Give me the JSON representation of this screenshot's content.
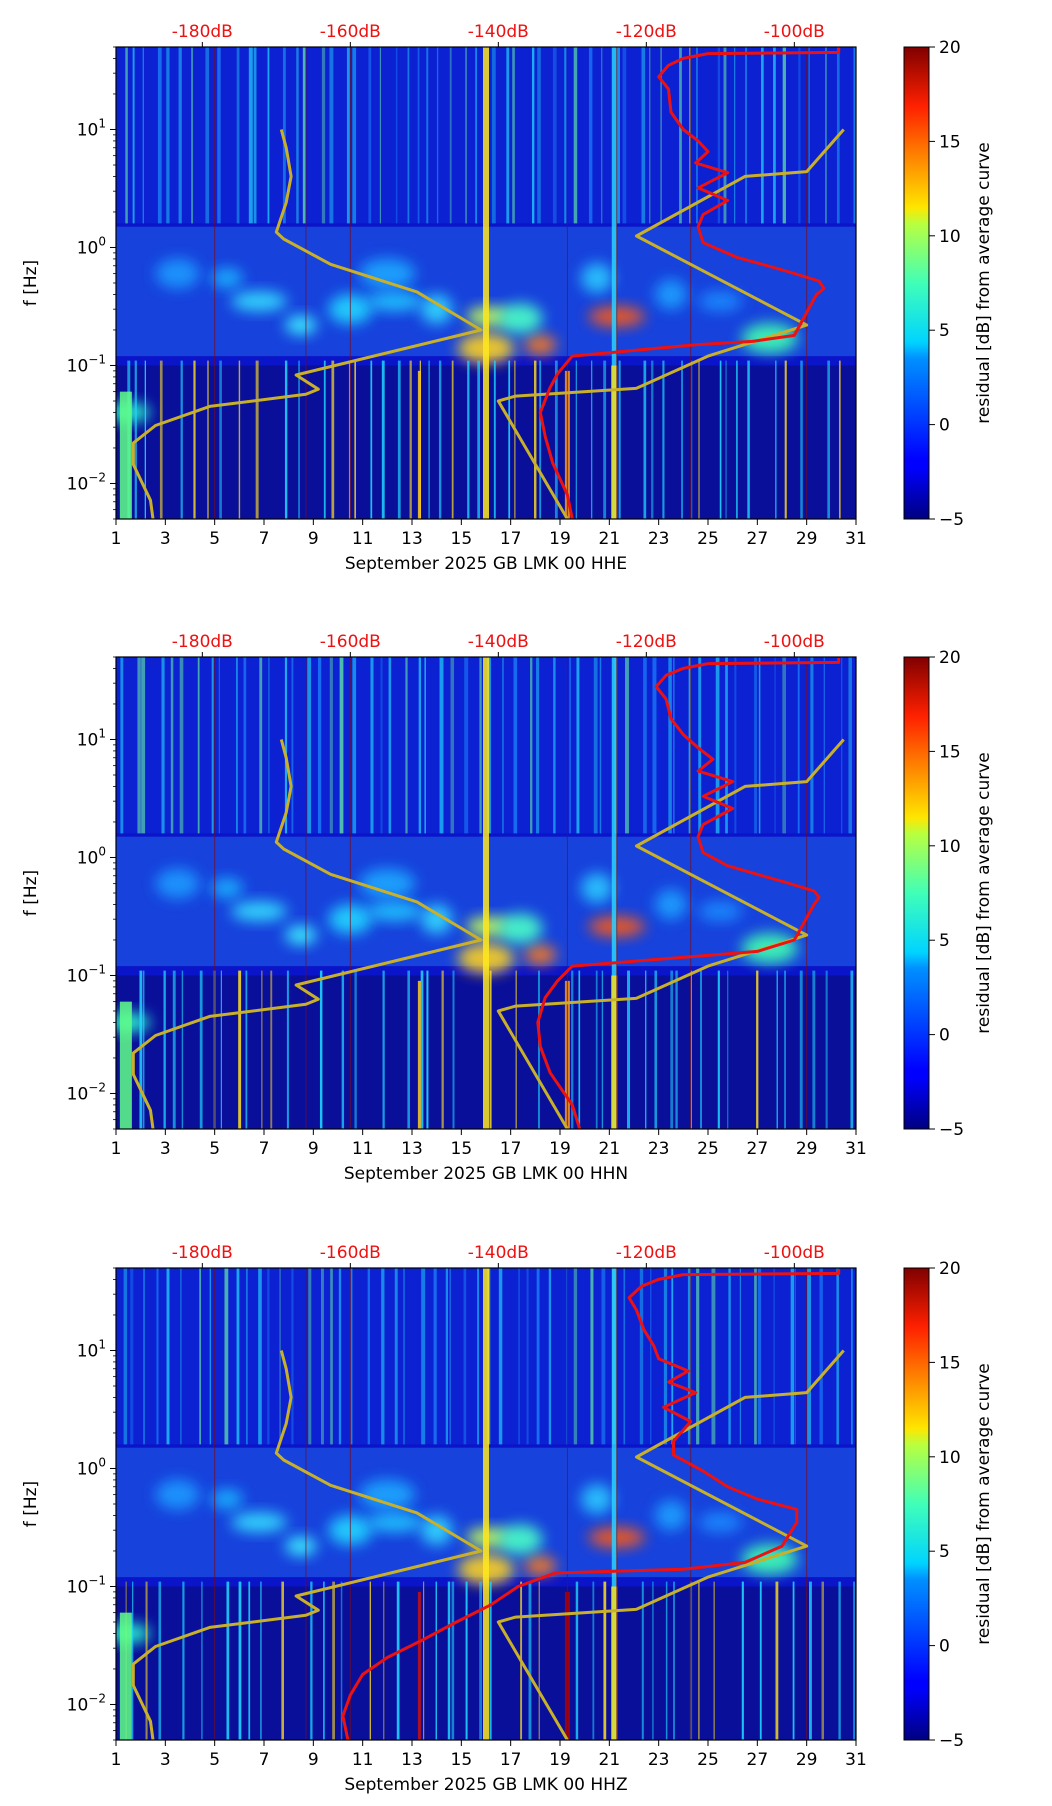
{
  "figure": {
    "colorbar_label": "residual [dB] from average curve",
    "colorbar_ticks": [
      "−5",
      "0",
      "5",
      "10",
      "15",
      "20"
    ],
    "colorbar_range": [
      -5,
      20
    ],
    "colormap": "jet",
    "colors": {
      "noise_model_curve": "#c8b02a",
      "psd_curve": "#ee1111",
      "db_tick_labels": "#ee1111"
    }
  },
  "chart_data": [
    {
      "type": "heatmap",
      "title": "",
      "xlabel": "September 2025 GB LMK 00 HHE",
      "ylabel": "f [Hz]",
      "x_ticks": [
        "1",
        "3",
        "5",
        "7",
        "9",
        "11",
        "13",
        "15",
        "17",
        "19",
        "21",
        "23",
        "25",
        "27",
        "29",
        "31"
      ],
      "xlim": [
        1,
        31
      ],
      "y_ticks": [
        "10^-2",
        "10^-1",
        "10^0",
        "10^1"
      ],
      "ylim": [
        0.005,
        50
      ],
      "y_scale": "log",
      "top_ticks": [
        "-180dB",
        "-160dB",
        "-140dB",
        "-120dB",
        "-100dB"
      ],
      "top_tick_days": [
        4.5,
        10.5,
        16.5,
        22.5,
        28.5
      ],
      "noise_model_curve": [
        [
          2.5,
          0.005
        ],
        [
          2.4,
          0.0072
        ],
        [
          1.7,
          0.0145
        ],
        [
          1.7,
          0.022
        ],
        [
          2.6,
          0.031
        ],
        [
          4.8,
          0.045
        ],
        [
          8.7,
          0.057
        ],
        [
          9.2,
          0.063
        ],
        [
          8.3,
          0.083
        ],
        [
          15.8,
          0.2
        ],
        [
          13.2,
          0.42
        ],
        [
          9.7,
          0.72
        ],
        [
          7.8,
          1.18
        ],
        [
          7.5,
          1.35
        ],
        [
          7.9,
          2.4
        ],
        [
          8.1,
          4.0
        ],
        [
          7.9,
          7.0
        ],
        [
          7.7,
          10.0
        ]
      ],
      "noise_model_curve_2": [
        [
          19.3,
          0.005
        ],
        [
          16.5,
          0.05
        ],
        [
          17.2,
          0.055
        ],
        [
          22.1,
          0.064
        ],
        [
          25,
          0.12
        ],
        [
          29,
          0.22
        ],
        [
          22.1,
          1.25
        ],
        [
          26.5,
          4.0
        ],
        [
          29,
          4.4
        ],
        [
          30.5,
          10.0
        ]
      ],
      "psd_curve": [
        [
          19.5,
          0.005
        ],
        [
          19.3,
          0.008
        ],
        [
          18.7,
          0.015
        ],
        [
          18.4,
          0.025
        ],
        [
          18.2,
          0.04
        ],
        [
          18.6,
          0.065
        ],
        [
          18.9,
          0.085
        ],
        [
          19.5,
          0.12
        ],
        [
          24.5,
          0.15
        ],
        [
          26.8,
          0.16
        ],
        [
          28.5,
          0.18
        ],
        [
          29.4,
          0.4
        ],
        [
          29.7,
          0.45
        ],
        [
          29.5,
          0.52
        ],
        [
          28.3,
          0.62
        ],
        [
          27.2,
          0.72
        ],
        [
          26.2,
          0.82
        ],
        [
          24.8,
          1.1
        ],
        [
          24.6,
          1.5
        ],
        [
          24.8,
          1.9
        ],
        [
          25.8,
          2.5
        ],
        [
          24.6,
          3.2
        ],
        [
          25.8,
          4.3
        ],
        [
          24.5,
          5.2
        ],
        [
          25,
          6.5
        ],
        [
          24.6,
          8
        ],
        [
          24,
          10
        ],
        [
          23.5,
          14
        ],
        [
          23.4,
          22
        ],
        [
          23,
          28
        ],
        [
          23.4,
          35
        ],
        [
          24,
          40
        ],
        [
          25,
          44
        ],
        [
          30.3,
          45
        ],
        [
          30.3,
          49
        ]
      ]
    },
    {
      "type": "heatmap",
      "title": "",
      "xlabel": "September 2025 GB LMK 00 HHN",
      "ylabel": "f [Hz]",
      "x_ticks": [
        "1",
        "3",
        "5",
        "7",
        "9",
        "11",
        "13",
        "15",
        "17",
        "19",
        "21",
        "23",
        "25",
        "27",
        "29",
        "31"
      ],
      "xlim": [
        1,
        31
      ],
      "y_ticks": [
        "10^-2",
        "10^-1",
        "10^0",
        "10^1"
      ],
      "ylim": [
        0.005,
        50
      ],
      "y_scale": "log",
      "top_ticks": [
        "-180dB",
        "-160dB",
        "-140dB",
        "-120dB",
        "-100dB"
      ],
      "top_tick_days": [
        4.5,
        10.5,
        16.5,
        22.5,
        28.5
      ],
      "noise_model_curve": [
        [
          2.5,
          0.005
        ],
        [
          2.4,
          0.0072
        ],
        [
          1.7,
          0.0145
        ],
        [
          1.7,
          0.022
        ],
        [
          2.6,
          0.031
        ],
        [
          4.8,
          0.045
        ],
        [
          8.7,
          0.057
        ],
        [
          9.2,
          0.063
        ],
        [
          8.3,
          0.083
        ],
        [
          15.8,
          0.2
        ],
        [
          13.2,
          0.42
        ],
        [
          9.7,
          0.72
        ],
        [
          7.8,
          1.18
        ],
        [
          7.5,
          1.35
        ],
        [
          7.9,
          2.4
        ],
        [
          8.1,
          4.0
        ],
        [
          7.9,
          7.0
        ],
        [
          7.7,
          10.0
        ]
      ],
      "noise_model_curve_2": [
        [
          19.3,
          0.005
        ],
        [
          16.5,
          0.05
        ],
        [
          17.2,
          0.055
        ],
        [
          22.1,
          0.064
        ],
        [
          25,
          0.12
        ],
        [
          29,
          0.22
        ],
        [
          22.1,
          1.25
        ],
        [
          26.5,
          4.0
        ],
        [
          29,
          4.4
        ],
        [
          30.5,
          10.0
        ]
      ],
      "psd_curve": [
        [
          19.8,
          0.005
        ],
        [
          19.5,
          0.008
        ],
        [
          18.6,
          0.015
        ],
        [
          18.2,
          0.025
        ],
        [
          18.1,
          0.04
        ],
        [
          18.4,
          0.065
        ],
        [
          18.9,
          0.09
        ],
        [
          19.5,
          0.12
        ],
        [
          24.5,
          0.145
        ],
        [
          27,
          0.16
        ],
        [
          28.5,
          0.2
        ],
        [
          29.3,
          0.4
        ],
        [
          29.5,
          0.46
        ],
        [
          29.3,
          0.52
        ],
        [
          28.1,
          0.62
        ],
        [
          27,
          0.72
        ],
        [
          25.8,
          0.85
        ],
        [
          24.8,
          1.1
        ],
        [
          24.6,
          1.5
        ],
        [
          24.8,
          1.9
        ],
        [
          26,
          2.6
        ],
        [
          24.8,
          3.3
        ],
        [
          26,
          4.4
        ],
        [
          24.6,
          5.4
        ],
        [
          25.2,
          6.8
        ],
        [
          24.6,
          8.5
        ],
        [
          24,
          11
        ],
        [
          23.5,
          15
        ],
        [
          23.3,
          22
        ],
        [
          22.9,
          28
        ],
        [
          23.3,
          35
        ],
        [
          24,
          40
        ],
        [
          25,
          44
        ],
        [
          30.3,
          45
        ],
        [
          30.3,
          49
        ]
      ]
    },
    {
      "type": "heatmap",
      "title": "",
      "xlabel": "September 2025 GB LMK 00 HHZ",
      "ylabel": "f [Hz]",
      "x_ticks": [
        "1",
        "3",
        "5",
        "7",
        "9",
        "11",
        "13",
        "15",
        "17",
        "19",
        "21",
        "23",
        "25",
        "27",
        "29",
        "31"
      ],
      "xlim": [
        1,
        31
      ],
      "y_ticks": [
        "10^-2",
        "10^-1",
        "10^0",
        "10^1"
      ],
      "ylim": [
        0.005,
        50
      ],
      "y_scale": "log",
      "top_ticks": [
        "-180dB",
        "-160dB",
        "-140dB",
        "-120dB",
        "-100dB"
      ],
      "top_tick_days": [
        4.5,
        10.5,
        16.5,
        22.5,
        28.5
      ],
      "noise_model_curve": [
        [
          2.5,
          0.005
        ],
        [
          2.4,
          0.0072
        ],
        [
          1.7,
          0.0145
        ],
        [
          1.7,
          0.022
        ],
        [
          2.6,
          0.031
        ],
        [
          4.8,
          0.045
        ],
        [
          8.7,
          0.057
        ],
        [
          9.2,
          0.063
        ],
        [
          8.3,
          0.083
        ],
        [
          15.8,
          0.2
        ],
        [
          13.2,
          0.42
        ],
        [
          9.7,
          0.72
        ],
        [
          7.8,
          1.18
        ],
        [
          7.5,
          1.35
        ],
        [
          7.9,
          2.4
        ],
        [
          8.1,
          4.0
        ],
        [
          7.9,
          7.0
        ],
        [
          7.7,
          10.0
        ]
      ],
      "noise_model_curve_2": [
        [
          19.3,
          0.005
        ],
        [
          16.5,
          0.05
        ],
        [
          17.2,
          0.055
        ],
        [
          22.1,
          0.064
        ],
        [
          25,
          0.12
        ],
        [
          29,
          0.22
        ],
        [
          22.1,
          1.25
        ],
        [
          26.5,
          4.0
        ],
        [
          29,
          4.4
        ],
        [
          30.5,
          10.0
        ]
      ],
      "psd_curve": [
        [
          10.4,
          0.005
        ],
        [
          10.2,
          0.008
        ],
        [
          10.5,
          0.012
        ],
        [
          11,
          0.018
        ],
        [
          12,
          0.025
        ],
        [
          13.4,
          0.035
        ],
        [
          14.8,
          0.05
        ],
        [
          16.2,
          0.07
        ],
        [
          17.3,
          0.1
        ],
        [
          18.8,
          0.13
        ],
        [
          24,
          0.14
        ],
        [
          26.5,
          0.16
        ],
        [
          28,
          0.22
        ],
        [
          28.6,
          0.35
        ],
        [
          28.6,
          0.45
        ],
        [
          27,
          0.55
        ],
        [
          25.8,
          0.7
        ],
        [
          24.8,
          0.95
        ],
        [
          23.6,
          1.3
        ],
        [
          23.6,
          1.7
        ],
        [
          24.3,
          2.5
        ],
        [
          23.2,
          3.3
        ],
        [
          24.5,
          4.4
        ],
        [
          23.4,
          5.4
        ],
        [
          24.2,
          6.7
        ],
        [
          23,
          8.5
        ],
        [
          22.8,
          11
        ],
        [
          22.4,
          15
        ],
        [
          22.1,
          22
        ],
        [
          21.8,
          28
        ],
        [
          22.3,
          35
        ],
        [
          23,
          40
        ],
        [
          24,
          44
        ],
        [
          30.3,
          45
        ],
        [
          30.3,
          49
        ]
      ]
    }
  ]
}
